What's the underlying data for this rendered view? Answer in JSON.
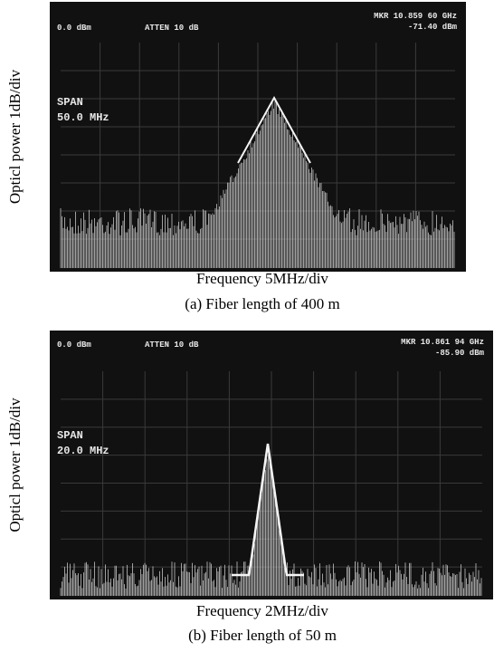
{
  "panels": [
    {
      "screen": {
        "ref_level": "0.0 dBm",
        "atten": "ATTEN 10 dB",
        "marker_freq": "MKR 10.859 60 GHz",
        "marker_level": "-71.40 dBm",
        "span_label": "SPAN",
        "span": "50.0 MHz"
      },
      "y_label": "Opticl power 1dB/div",
      "x_label": "Frequency 5MHz/div",
      "caption": "(a) Fiber length of 400 m"
    },
    {
      "screen": {
        "ref_level": "0.0 dBm",
        "atten": "ATTEN 10 dB",
        "marker_freq": "MKR 10.861 94 GHz",
        "marker_level": "-85.90 dBm",
        "span_label": "SPAN",
        "span": "20.0 MHz"
      },
      "y_label": "Opticl power 1dB/div",
      "x_label": "Frequency 2MHz/div",
      "caption": "(b) Fiber length of 50 m"
    }
  ]
}
